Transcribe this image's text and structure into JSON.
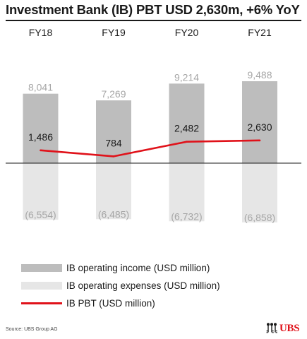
{
  "title": "Investment Bank (IB) PBT USD 2,630m, +6% YoY",
  "chart_data": {
    "type": "bar",
    "categories": [
      "FY18",
      "FY19",
      "FY20",
      "FY21"
    ],
    "series": [
      {
        "name": "IB operating income (USD million)",
        "kind": "bar",
        "color": "#bdbdbd",
        "values": [
          8041,
          7269,
          9214,
          9488
        ],
        "labels": [
          "8,041",
          "7,269",
          "9,214",
          "9,488"
        ]
      },
      {
        "name": "IB operating expenses (USD million)",
        "kind": "bar",
        "color": "#e6e6e6",
        "values": [
          -6554,
          -6485,
          -6732,
          -6858
        ],
        "labels": [
          "(6,554)",
          "(6,485)",
          "(6,732)",
          "(6,858)"
        ]
      },
      {
        "name": "IB PBT (USD million)",
        "kind": "line",
        "color": "#e0121a",
        "values": [
          1486,
          784,
          2482,
          2630
        ],
        "labels": [
          "1,486",
          "784",
          "2,482",
          "2,630"
        ]
      }
    ],
    "legend_position": "bottom-left",
    "grid": false
  },
  "legend": [
    {
      "label": "IB operating income (USD million)",
      "color": "#bdbdbd",
      "type": "bar"
    },
    {
      "label": "IB operating expenses (USD million)",
      "color": "#e6e6e6",
      "type": "bar"
    },
    {
      "label": "IB PBT (USD million)",
      "color": "#e0121a",
      "type": "line"
    }
  ],
  "source": "Source: UBS Group AG",
  "logo_text": "UBS"
}
